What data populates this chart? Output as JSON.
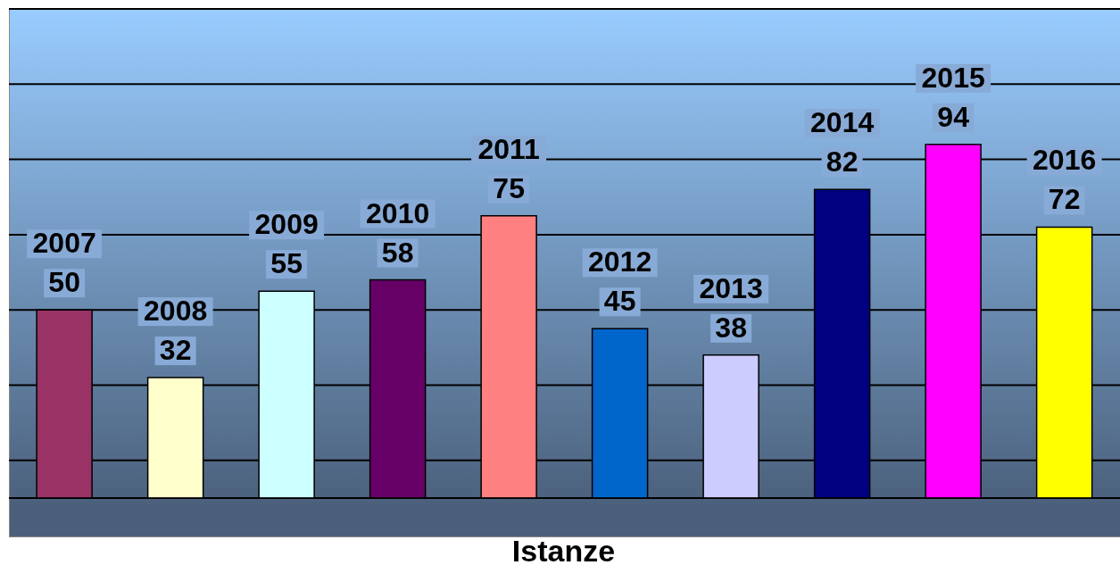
{
  "chart_data": {
    "type": "bar",
    "xlabel": "Istanze",
    "categories": [
      "2007",
      "2008",
      "2009",
      "2010",
      "2011",
      "2012",
      "2013",
      "2014",
      "2015",
      "2016"
    ],
    "values": [
      50,
      32,
      55,
      58,
      75,
      45,
      38,
      82,
      94,
      72
    ],
    "colors": [
      "#993366",
      "#ffffcc",
      "#ccffff",
      "#660066",
      "#ff8080",
      "#0066cc",
      "#ccccff",
      "#000080",
      "#ff00ff",
      "#ffff00"
    ],
    "ylim": [
      0,
      130
    ],
    "yticks": [
      {
        "value": 10,
        "label": null
      },
      {
        "value": 30,
        "label": null
      },
      {
        "value": 50,
        "label": null
      },
      {
        "value": 70,
        "label": null
      },
      {
        "value": 90,
        "label": null
      },
      {
        "value": 110,
        "label": null
      }
    ],
    "grid": "y",
    "tick_labels": false,
    "data_labels": true
  }
}
